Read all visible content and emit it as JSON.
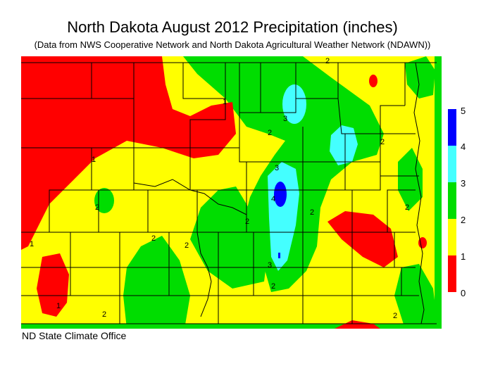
{
  "header": {
    "title": "North Dakota August 2012 Precipitation (inches)",
    "subtitle": "(Data from NWS Cooperative Network and North Dakota Agricultural Weather Network (NDAWN))"
  },
  "footer": {
    "credit": "ND State Climate Office"
  },
  "legend": {
    "ticks": [
      "0",
      "1",
      "2",
      "3",
      "4",
      "5"
    ],
    "bins": [
      {
        "range": "0-1",
        "color": "#ff0000"
      },
      {
        "range": "1-2",
        "color": "#ffff00"
      },
      {
        "range": "2-3",
        "color": "#00dd00"
      },
      {
        "range": "3-4",
        "color": "#44ffff"
      },
      {
        "range": "4-5",
        "color": "#0000ff"
      }
    ]
  },
  "contour_labels": [
    "1",
    "2",
    "3",
    "4"
  ]
}
